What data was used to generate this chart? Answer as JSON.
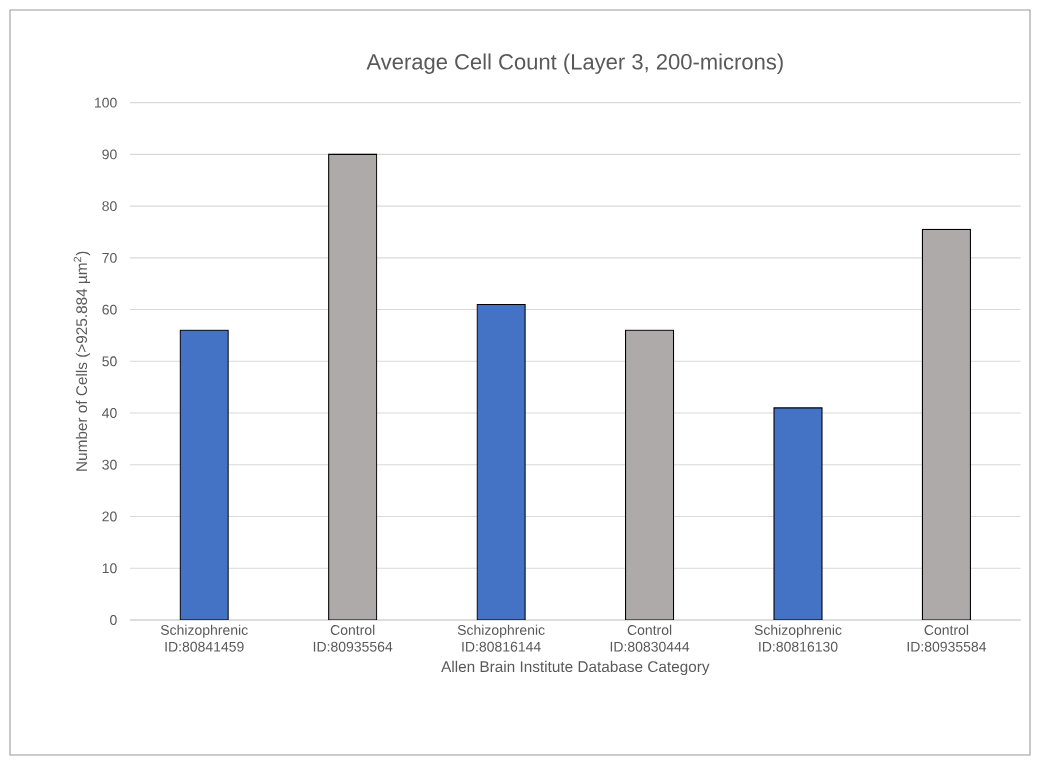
{
  "chart_data": {
    "type": "bar",
    "title": "Average Cell Count (Layer 3, 200-microns)",
    "xlabel": "Allen Brain Institute Database Category",
    "ylabel": "Number of Cells  (>925.884 µm$^{2}$)",
    "categories": [
      "Schizophrenic ID:80841459",
      "Control ID:80935564",
      "Schizophrenic ID:80816144",
      "Control ID:80830444",
      "Schizophrenic ID:80816130",
      "Control ID:80935584"
    ],
    "values": [
      56,
      90,
      61,
      56,
      41,
      75.5
    ],
    "colors": [
      "#4472c4",
      "#aeaaaa",
      "#4472c4",
      "#aeaaaa",
      "#4472c4",
      "#aeaaaa"
    ],
    "ylim": [
      0,
      100
    ],
    "yticks": [
      0,
      10,
      20,
      30,
      40,
      50,
      60,
      70,
      80,
      90,
      100
    ],
    "grid": "y"
  }
}
